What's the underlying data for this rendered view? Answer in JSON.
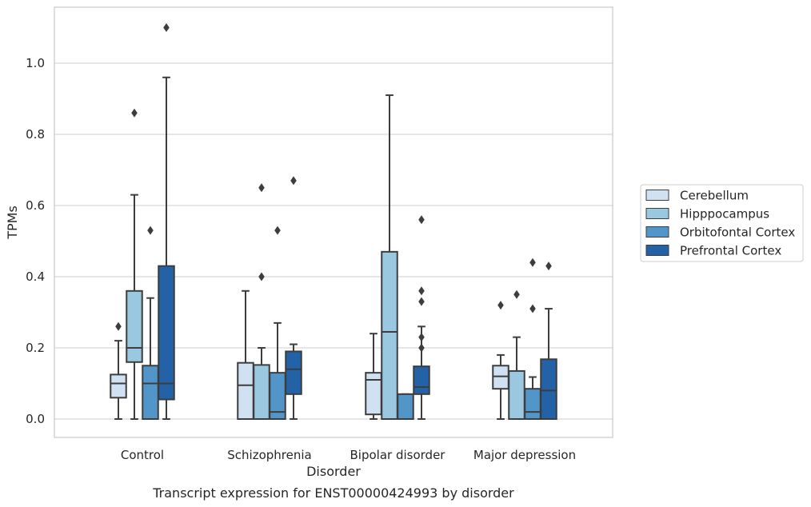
{
  "chart_data": {
    "type": "box",
    "caption": "Transcript expression for ENST00000424993 by disorder",
    "xlabel": "Disorder",
    "ylabel": "TPMs",
    "ylim": [
      -0.052,
      1.16
    ],
    "yticks": [
      0.0,
      0.2,
      0.4,
      0.6,
      0.8,
      1.0
    ],
    "ytick_labels": [
      "0.0",
      "0.2",
      "0.4",
      "0.6",
      "0.8",
      "1.0"
    ],
    "grid": "horizontal",
    "legend_position": "right",
    "categories": [
      "Control",
      "Schizophrenia",
      "Bipolar disorder",
      "Major depression"
    ],
    "series": [
      {
        "name": "Cerebellum",
        "color": "#d0e1f2",
        "boxes": [
          {
            "whisker_low": 0.0,
            "q1": 0.06,
            "median": 0.1,
            "q3": 0.125,
            "whisker_high": 0.22,
            "outliers": [
              0.26
            ]
          },
          {
            "whisker_low": 0.0,
            "q1": 0.0,
            "median": 0.095,
            "q3": 0.158,
            "whisker_high": 0.36,
            "outliers": []
          },
          {
            "whisker_low": 0.0,
            "q1": 0.013,
            "median": 0.11,
            "q3": 0.13,
            "whisker_high": 0.24,
            "outliers": []
          },
          {
            "whisker_low": 0.0,
            "q1": 0.085,
            "median": 0.12,
            "q3": 0.15,
            "whisker_high": 0.18,
            "outliers": [
              0.32
            ]
          }
        ]
      },
      {
        "name": "Hipppocampus",
        "color": "#9ac8e0",
        "boxes": [
          {
            "whisker_low": 0.0,
            "q1": 0.16,
            "median": 0.2,
            "q3": 0.36,
            "whisker_high": 0.63,
            "outliers": [
              0.86
            ]
          },
          {
            "whisker_low": 0.0,
            "q1": 0.0,
            "median": 0.0,
            "q3": 0.152,
            "whisker_high": 0.2,
            "outliers": [
              0.4,
              0.65
            ]
          },
          {
            "whisker_low": 0.0,
            "q1": 0.0,
            "median": 0.245,
            "q3": 0.47,
            "whisker_high": 0.91,
            "outliers": []
          },
          {
            "whisker_low": 0.0,
            "q1": 0.0,
            "median": 0.0,
            "q3": 0.135,
            "whisker_high": 0.23,
            "outliers": [
              0.35
            ]
          }
        ]
      },
      {
        "name": "Orbitofontal Cortex",
        "color": "#5296c9",
        "boxes": [
          {
            "whisker_low": 0.0,
            "q1": 0.0,
            "median": 0.1,
            "q3": 0.15,
            "whisker_high": 0.34,
            "outliers": [
              0.53
            ]
          },
          {
            "whisker_low": 0.0,
            "q1": 0.0,
            "median": 0.02,
            "q3": 0.13,
            "whisker_high": 0.27,
            "outliers": [
              0.53
            ]
          },
          {
            "whisker_low": 0.0,
            "q1": 0.0,
            "median": 0.0,
            "q3": 0.07,
            "whisker_high": 0.07,
            "outliers": []
          },
          {
            "whisker_low": 0.0,
            "q1": 0.0,
            "median": 0.02,
            "q3": 0.085,
            "whisker_high": 0.118,
            "outliers": [
              0.31,
              0.44
            ]
          }
        ]
      },
      {
        "name": "Prefrontal Cortex",
        "color": "#2362a6",
        "boxes": [
          {
            "whisker_low": 0.0,
            "q1": 0.055,
            "median": 0.1,
            "q3": 0.43,
            "whisker_high": 0.96,
            "outliers": [
              1.1
            ]
          },
          {
            "whisker_low": 0.0,
            "q1": 0.07,
            "median": 0.14,
            "q3": 0.19,
            "whisker_high": 0.21,
            "outliers": [
              0.67
            ]
          },
          {
            "whisker_low": 0.0,
            "q1": 0.07,
            "median": 0.09,
            "q3": 0.148,
            "whisker_high": 0.26,
            "outliers": [
              0.2,
              0.23,
              0.33,
              0.36,
              0.56
            ]
          },
          {
            "whisker_low": 0.0,
            "q1": 0.0,
            "median": 0.08,
            "q3": 0.168,
            "whisker_high": 0.31,
            "outliers": [
              0.43
            ]
          }
        ]
      }
    ]
  }
}
